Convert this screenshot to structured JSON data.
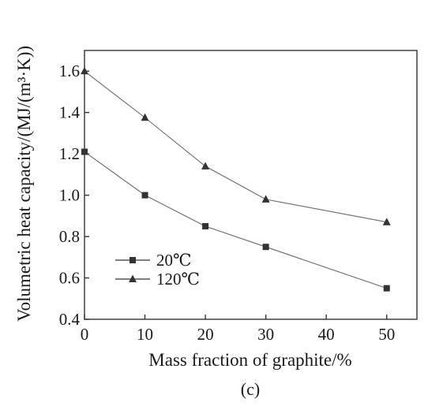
{
  "chart_data": {
    "type": "line",
    "xlabel": "Mass fraction of graphite/%",
    "ylabel": "Volumetric heat capacity/(MJ/(m³·K))",
    "caption": "(c)",
    "x": [
      0,
      10,
      20,
      30,
      50
    ],
    "xlim": [
      0,
      55
    ],
    "ylim": [
      0.4,
      1.7
    ],
    "xticks": [
      "0",
      "10",
      "20",
      "30",
      "40",
      "50"
    ],
    "yticks": [
      "0.4",
      "0.6",
      "0.8",
      "1.0",
      "1.2",
      "1.4",
      "1.6"
    ],
    "grid": false,
    "legend_position": "lower-left",
    "series": [
      {
        "name": "20℃",
        "marker": "square",
        "color": "#333333",
        "values": [
          1.21,
          1.0,
          0.85,
          0.75,
          0.55
        ]
      },
      {
        "name": "120℃",
        "marker": "triangle",
        "color": "#333333",
        "values": [
          1.6,
          1.375,
          1.14,
          0.98,
          0.87
        ]
      }
    ]
  }
}
